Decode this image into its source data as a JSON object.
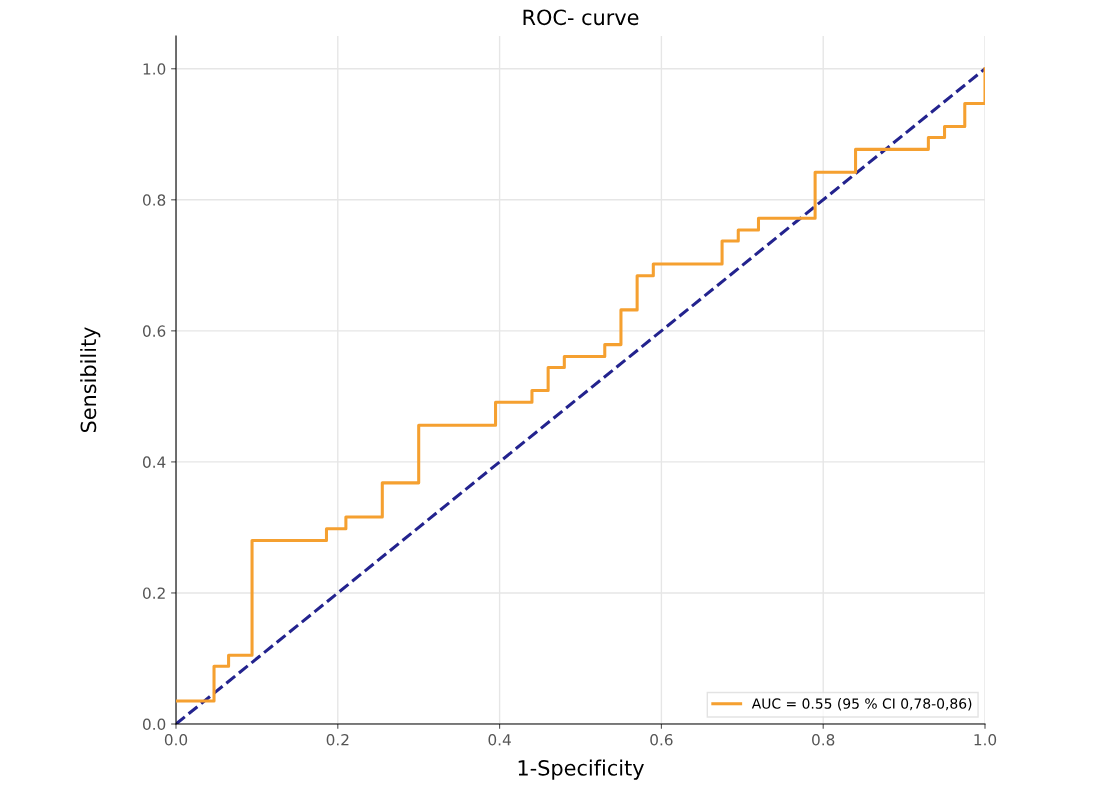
{
  "chart_data": {
    "type": "step",
    "title": "ROC- curve",
    "xlabel": "1-Specificity",
    "ylabel": "Sensibility",
    "xlim": [
      0,
      1.0
    ],
    "ylim": [
      0,
      1.05
    ],
    "xticks": [
      {
        "value": 0,
        "label": "0.0"
      },
      0.2,
      0.4,
      0.6,
      0.8,
      {
        "value": 1,
        "label": "1.0"
      }
    ],
    "yticks": [
      {
        "value": 0,
        "label": "0.0"
      },
      0.2,
      0.4,
      0.6,
      0.8,
      {
        "value": 1,
        "label": "1.0"
      }
    ],
    "grid": true,
    "legend": "bottom right",
    "series": [
      {
        "name": "AUC = 0.55 (95 % CI 0,78-0,86)",
        "color": "#f5a030",
        "line_style": "solid",
        "x": [
          0,
          0.047,
          0.065,
          0.094,
          0.186,
          0.21,
          0.255,
          0.3,
          0.395,
          0.44,
          0.46,
          0.48,
          0.53,
          0.55,
          0.57,
          0.59,
          0.675,
          0.695,
          0.72,
          0.79,
          0.84,
          0.93,
          0.95,
          0.975,
          1.0
        ],
        "values": [
          0.035,
          0.088,
          0.105,
          0.28,
          0.298,
          0.316,
          0.368,
          0.456,
          0.491,
          0.509,
          0.544,
          0.561,
          0.579,
          0.632,
          0.684,
          0.702,
          0.737,
          0.754,
          0.772,
          0.842,
          0.877,
          0.895,
          0.912,
          0.947,
          1.0
        ]
      },
      {
        "type": "line",
        "color": "#23238e",
        "line_style": "dashed",
        "x": [
          0,
          1
        ],
        "values": [
          0,
          1
        ]
      }
    ]
  }
}
